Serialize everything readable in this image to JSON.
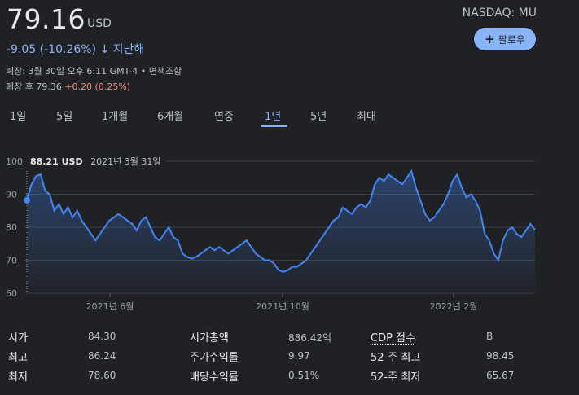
{
  "quote": {
    "price": "79.16",
    "currency": "USD",
    "exchange_ticker": "NASDAQ: MU",
    "change": "-9.05 (-10.26%)",
    "change_arrow": "↓",
    "change_period": "지난해",
    "follow_label": "팔로우",
    "close_info": "폐장: 3월 30일 오후 6:11 GMT-4 • 면책조항",
    "after_hours_label": "폐장 후 79.36",
    "after_hours_change": "+0.20 (0.25%)"
  },
  "tabs": [
    {
      "label": "1일"
    },
    {
      "label": "5일"
    },
    {
      "label": "1개월"
    },
    {
      "label": "6개월"
    },
    {
      "label": "연중"
    },
    {
      "label": "1년"
    },
    {
      "label": "5년"
    },
    {
      "label": "최대"
    }
  ],
  "active_tab": "1년",
  "tooltip": {
    "price": "88.21 USD",
    "date": "2021년 3월 31일"
  },
  "chart_data": {
    "type": "area",
    "ylim": [
      60,
      100
    ],
    "y_ticks": [
      "100",
      "90",
      "80",
      "70",
      "60"
    ],
    "x_ticks": [
      "2021년 6월",
      "2021년 10월",
      "2022년 2월"
    ],
    "line_color": "#4285f4",
    "grid": true,
    "values": [
      88.2,
      93,
      95.5,
      96,
      91,
      90,
      85,
      87,
      84,
      86,
      83,
      85,
      82,
      80,
      78,
      76,
      78,
      80,
      82,
      83,
      84,
      83,
      82,
      81,
      79,
      82,
      83,
      80,
      77,
      76,
      78,
      80,
      77,
      76,
      72,
      71,
      70.5,
      71,
      72,
      73,
      74,
      73,
      74,
      73,
      72,
      73,
      74,
      75,
      76,
      74,
      72,
      71,
      70,
      70,
      69,
      67,
      66.5,
      67,
      68,
      68,
      69,
      70,
      72,
      74,
      76,
      78,
      80,
      82,
      83,
      86,
      85,
      84,
      86,
      87,
      86,
      88,
      93,
      95,
      94,
      96,
      95,
      94,
      93,
      95,
      97,
      92,
      88,
      84,
      82,
      83,
      85,
      87,
      90,
      94,
      96,
      92,
      89,
      90,
      88,
      85,
      78,
      76,
      72,
      70,
      76,
      79,
      80,
      78,
      77,
      79,
      81,
      79.16
    ]
  },
  "stats": [
    {
      "label": "시가",
      "value": "84.30"
    },
    {
      "label": "최고",
      "value": "86.24"
    },
    {
      "label": "최저",
      "value": "78.60"
    },
    {
      "label": "시가총액",
      "value": "886.42억"
    },
    {
      "label": "주가수익률",
      "value": "9.97"
    },
    {
      "label": "배당수익률",
      "value": "0.51%"
    },
    {
      "label": "CDP 점수",
      "value": "B"
    },
    {
      "label": "52-주 최고",
      "value": "98.45"
    },
    {
      "label": "52-주 최저",
      "value": "65.67"
    }
  ]
}
